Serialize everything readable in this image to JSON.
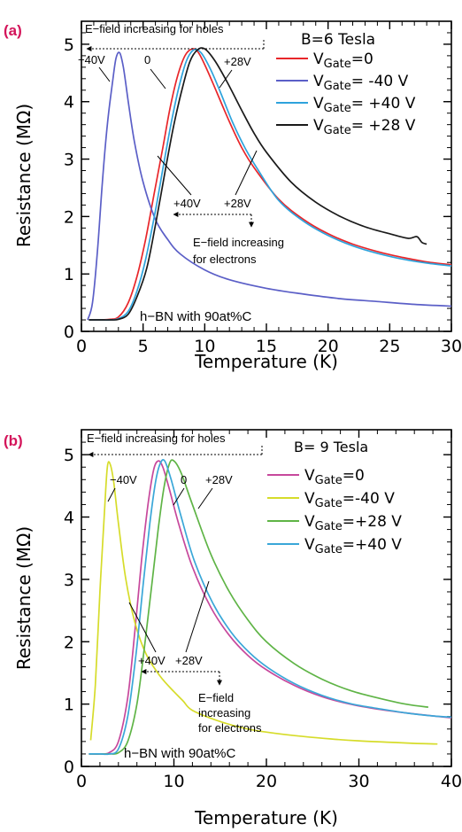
{
  "chart_data": [
    {
      "panel": "(a)",
      "type": "line",
      "xlabel": "Temperature (K)",
      "ylabel": "Resistance (MΩ)",
      "xlim": [
        0,
        30
      ],
      "ylim": [
        0,
        5.4
      ],
      "xticks": [
        0,
        5,
        10,
        15,
        20,
        25,
        30
      ],
      "yticks": [
        0,
        1,
        2,
        3,
        4,
        5
      ],
      "x_tick_labels": [
        "0",
        "5",
        "10",
        "15",
        "20",
        "25",
        "30"
      ],
      "y_tick_labels": [
        "0",
        "1",
        "2",
        "3",
        "4",
        "5"
      ],
      "legend_title": "B=6 Tesla",
      "legend_position": "top-right",
      "sample_label": "h−BN with 90at%C",
      "series": [
        {
          "legend_main": "V",
          "legend_sub": "Gate",
          "legend_rest": "=0",
          "color": "#e8262a",
          "x": [
            0.6,
            1.5,
            2.3,
            3.0,
            3.8,
            4.5,
            5.2,
            5.9,
            6.6,
            7.2,
            7.8,
            8.4,
            9.0,
            9.5,
            10.2,
            11,
            12,
            13,
            14,
            16,
            18,
            20,
            22,
            24,
            26,
            28,
            30
          ],
          "y": [
            0.2,
            0.2,
            0.21,
            0.25,
            0.5,
            0.95,
            1.6,
            2.4,
            3.2,
            3.9,
            4.45,
            4.8,
            4.92,
            4.85,
            4.55,
            4.15,
            3.65,
            3.2,
            2.85,
            2.3,
            1.95,
            1.7,
            1.52,
            1.39,
            1.29,
            1.21,
            1.16
          ]
        },
        {
          "legend_main": "V",
          "legend_sub": "Gate",
          "legend_rest": "= -40 V",
          "color": "#5b5fc7",
          "x": [
            0.5,
            0.9,
            1.3,
            1.7,
            2.1,
            2.5,
            2.8,
            3.1,
            3.4,
            3.8,
            4.3,
            5.0,
            6.0,
            7.0,
            8.0,
            10,
            12,
            15,
            18,
            21,
            24,
            27,
            30
          ],
          "y": [
            0.2,
            0.5,
            1.4,
            2.6,
            3.6,
            4.3,
            4.75,
            4.85,
            4.6,
            4.0,
            3.3,
            2.6,
            1.95,
            1.6,
            1.35,
            1.07,
            0.9,
            0.75,
            0.65,
            0.57,
            0.52,
            0.47,
            0.44
          ]
        },
        {
          "legend_main": "V",
          "legend_sub": "Gate",
          "legend_rest": "= +40 V",
          "color": "#2ea3dc",
          "x": [
            0.6,
            1.5,
            2.3,
            3.0,
            3.8,
            4.5,
            5.2,
            6.0,
            6.7,
            7.3,
            7.9,
            8.5,
            9.1,
            9.7,
            10.5,
            11.3,
            12.3,
            13.3,
            14.3,
            16,
            18,
            20,
            22,
            24,
            26,
            28,
            30
          ],
          "y": [
            0.2,
            0.2,
            0.2,
            0.22,
            0.35,
            0.7,
            1.25,
            2.1,
            2.95,
            3.65,
            4.25,
            4.7,
            4.9,
            4.85,
            4.55,
            4.15,
            3.62,
            3.18,
            2.82,
            2.28,
            1.92,
            1.67,
            1.49,
            1.36,
            1.26,
            1.19,
            1.14
          ]
        },
        {
          "legend_main": "V",
          "legend_sub": "Gate",
          "legend_rest": "= +28 V",
          "color": "#1a1a1a",
          "x": [
            0.6,
            1.5,
            2.3,
            3.0,
            3.8,
            4.5,
            5.3,
            6.0,
            6.8,
            7.5,
            8.2,
            8.8,
            9.4,
            10.0,
            10.8,
            11.8,
            13,
            14,
            15,
            17,
            19,
            21,
            23,
            25,
            26.5,
            27.2,
            27.6,
            28
          ],
          "y": [
            0.2,
            0.2,
            0.2,
            0.21,
            0.3,
            0.6,
            1.1,
            1.85,
            2.8,
            3.6,
            4.25,
            4.7,
            4.9,
            4.92,
            4.72,
            4.35,
            3.85,
            3.45,
            3.12,
            2.6,
            2.25,
            2.0,
            1.82,
            1.7,
            1.62,
            1.65,
            1.55,
            1.52
          ]
        }
      ],
      "annotations": {
        "holes_arrow": "E−field increasing for holes",
        "electrons_arrow_1": "E−field increasing",
        "electrons_arrow_2": "for electrons",
        "label_m40": "−40V",
        "label_0": "0",
        "label_p28_top": "+28V",
        "label_p40": "+40V",
        "label_p28_bottom": "+28V"
      }
    },
    {
      "panel": "(b)",
      "type": "line",
      "xlabel": "Temperature (K)",
      "ylabel": "Resistance (MΩ)",
      "xlim": [
        0,
        40
      ],
      "ylim": [
        0,
        5.4
      ],
      "xticks": [
        0,
        10,
        20,
        30,
        40
      ],
      "yticks": [
        0,
        1,
        2,
        3,
        4,
        5
      ],
      "x_tick_labels": [
        "0",
        "10",
        "20",
        "30",
        "40"
      ],
      "y_tick_labels": [
        "0",
        "1",
        "2",
        "3",
        "4",
        "5"
      ],
      "legend_title": "B= 9 Tesla",
      "legend_position": "top-right",
      "sample_label": "h−BN with 90at%C",
      "series": [
        {
          "legend_main": "V",
          "legend_sub": "Gate",
          "legend_rest": "=0",
          "color": "#c7489c",
          "x": [
            0.8,
            2,
            3,
            4,
            5,
            5.8,
            6.5,
            7.2,
            7.8,
            8.3,
            8.8,
            9.5,
            10.5,
            12,
            14,
            16,
            18,
            20,
            23,
            26,
            29,
            32,
            35,
            38,
            40
          ],
          "y": [
            0.2,
            0.2,
            0.22,
            0.4,
            1.1,
            2.2,
            3.3,
            4.2,
            4.75,
            4.9,
            4.8,
            4.45,
            3.9,
            3.2,
            2.55,
            2.1,
            1.78,
            1.55,
            1.3,
            1.12,
            1.0,
            0.92,
            0.86,
            0.81,
            0.78
          ]
        },
        {
          "legend_main": "V",
          "legend_sub": "Gate",
          "legend_rest": "=-40 V",
          "color": "#d6dc2a",
          "x": [
            1.0,
            1.5,
            2.0,
            2.5,
            2.8,
            3.1,
            3.5,
            4.0,
            4.8,
            5.8,
            7,
            8.5,
            10,
            11,
            12,
            15,
            18,
            21,
            24,
            27,
            30,
            33,
            36,
            38.5
          ],
          "y": [
            0.42,
            1.3,
            2.8,
            4.1,
            4.8,
            4.85,
            4.55,
            3.9,
            3.0,
            2.3,
            1.8,
            1.45,
            1.2,
            1.05,
            0.9,
            0.72,
            0.6,
            0.53,
            0.48,
            0.44,
            0.41,
            0.39,
            0.37,
            0.36
          ]
        },
        {
          "legend_main": "V",
          "legend_sub": "Gate",
          "legend_rest": "=+28 V",
          "color": "#5fb446",
          "x": [
            0.8,
            2,
            3,
            4,
            5,
            6,
            6.8,
            7.6,
            8.3,
            8.9,
            9.5,
            10.0,
            10.8,
            12,
            14,
            16,
            18,
            20,
            23,
            26,
            29,
            32,
            35,
            37.5
          ],
          "y": [
            0.2,
            0.2,
            0.2,
            0.22,
            0.4,
            1.0,
            1.9,
            2.9,
            3.8,
            4.45,
            4.85,
            4.9,
            4.7,
            4.2,
            3.4,
            2.8,
            2.35,
            2.0,
            1.65,
            1.4,
            1.22,
            1.1,
            1.0,
            0.95
          ]
        },
        {
          "legend_main": "V",
          "legend_sub": "Gate",
          "legend_rest": "=+40 V",
          "color": "#3aa7d8",
          "x": [
            0.8,
            2,
            3,
            4,
            5,
            5.9,
            6.7,
            7.4,
            8.0,
            8.5,
            9.0,
            9.7,
            10.7,
            12.2,
            14.2,
            16.2,
            18.2,
            20.2,
            23,
            26,
            29,
            32,
            35,
            38,
            40
          ],
          "y": [
            0.2,
            0.2,
            0.2,
            0.28,
            0.8,
            1.8,
            2.95,
            3.9,
            4.55,
            4.85,
            4.9,
            4.6,
            4.05,
            3.3,
            2.62,
            2.15,
            1.82,
            1.58,
            1.33,
            1.14,
            1.01,
            0.93,
            0.86,
            0.81,
            0.79
          ]
        }
      ],
      "annotations": {
        "holes_arrow": "E−field increasing for holes",
        "electrons_arrow_1": "E−field",
        "electrons_arrow_2": "increasing",
        "electrons_arrow_3": "for electrons",
        "label_m40": "−40V",
        "label_0": "0",
        "label_p28_top": "+28V",
        "label_p40": "+40V",
        "label_p28_bottom": "+28V"
      }
    }
  ]
}
